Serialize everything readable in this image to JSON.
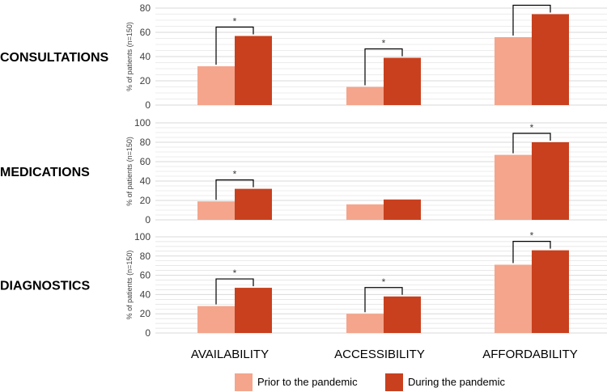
{
  "chart_data": {
    "type": "bar",
    "categories": [
      "AVAILABILITY",
      "ACCESSIBILITY",
      "AFFORDABILITY"
    ],
    "legend": {
      "placement": "bottom"
    },
    "legend_entries": [
      "Prior to the pandemic",
      "During the pandemic"
    ],
    "colors": {
      "prior": "#f4a58c",
      "during": "#c9401e",
      "grid": "#d9d9d9",
      "bracket": "#000000"
    },
    "significance_marker": "*",
    "panels": [
      {
        "row_label": "CONSULTATIONS",
        "ylabel": "% of patients (n=150)",
        "ylim": [
          0,
          80
        ],
        "yticks": [
          0,
          20,
          40,
          60,
          80
        ],
        "series": [
          {
            "name": "Prior to the pandemic",
            "values": [
              32,
              15,
              56
            ]
          },
          {
            "name": "During the pandemic",
            "values": [
              57,
              39,
              75
            ]
          }
        ],
        "significant": [
          true,
          true,
          true
        ]
      },
      {
        "row_label": "MEDICATIONS",
        "ylabel": "% of patients (n=150)",
        "ylim": [
          0,
          100
        ],
        "yticks": [
          0,
          20,
          40,
          60,
          80,
          100
        ],
        "series": [
          {
            "name": "Prior to the pandemic",
            "values": [
              19,
              16,
              67
            ]
          },
          {
            "name": "During the pandemic",
            "values": [
              32,
              21,
              80
            ]
          }
        ],
        "significant": [
          true,
          false,
          true
        ]
      },
      {
        "row_label": "DIAGNOSTICS",
        "ylabel": "% of patients (n=150)",
        "ylim": [
          0,
          100
        ],
        "yticks": [
          0,
          20,
          40,
          60,
          80,
          100
        ],
        "series": [
          {
            "name": "Prior to the pandemic",
            "values": [
              28,
              20,
              71
            ]
          },
          {
            "name": "During the pandemic",
            "values": [
              47,
              38,
              86
            ]
          }
        ],
        "significant": [
          true,
          true,
          true
        ]
      }
    ]
  }
}
